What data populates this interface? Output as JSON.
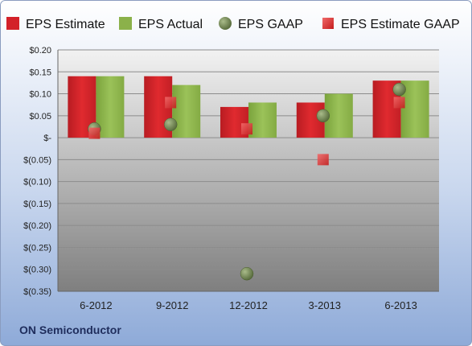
{
  "chart_data": {
    "type": "bar",
    "categories": [
      "6-2012",
      "9-2012",
      "12-2012",
      "3-2013",
      "6-2013"
    ],
    "series": [
      {
        "name": "EPS Estimate",
        "kind": "bar",
        "color": "#d32129",
        "values": [
          0.14,
          0.14,
          0.07,
          0.08,
          0.13
        ]
      },
      {
        "name": "EPS Actual",
        "kind": "bar",
        "color": "#8bb14a",
        "values": [
          0.14,
          0.12,
          0.08,
          0.1,
          0.13
        ]
      },
      {
        "name": "EPS GAAP",
        "kind": "marker-circle",
        "color": "#6f8a4a",
        "values": [
          0.02,
          0.03,
          -0.31,
          0.05,
          0.11
        ]
      },
      {
        "name": "EPS Estimate GAAP",
        "kind": "marker-square",
        "color": "#e23c3c",
        "values": [
          0.01,
          0.08,
          0.02,
          -0.05,
          0.08
        ]
      }
    ],
    "ylim": [
      -0.35,
      0.2
    ],
    "yticks": [
      0.2,
      0.15,
      0.1,
      0.05,
      0,
      -0.05,
      -0.1,
      -0.15,
      -0.2,
      -0.25,
      -0.3,
      -0.35
    ],
    "ytick_labels": [
      "$0.20",
      "$0.15",
      "$0.10",
      "$0.05",
      "$-",
      "$(0.05)",
      "$(0.10)",
      "$(0.15)",
      "$(0.20)",
      "$(0.25)",
      "$(0.30)",
      "$(0.35)"
    ],
    "grid": true,
    "legend_position": "top",
    "footer_label": "ON Semiconductor"
  }
}
